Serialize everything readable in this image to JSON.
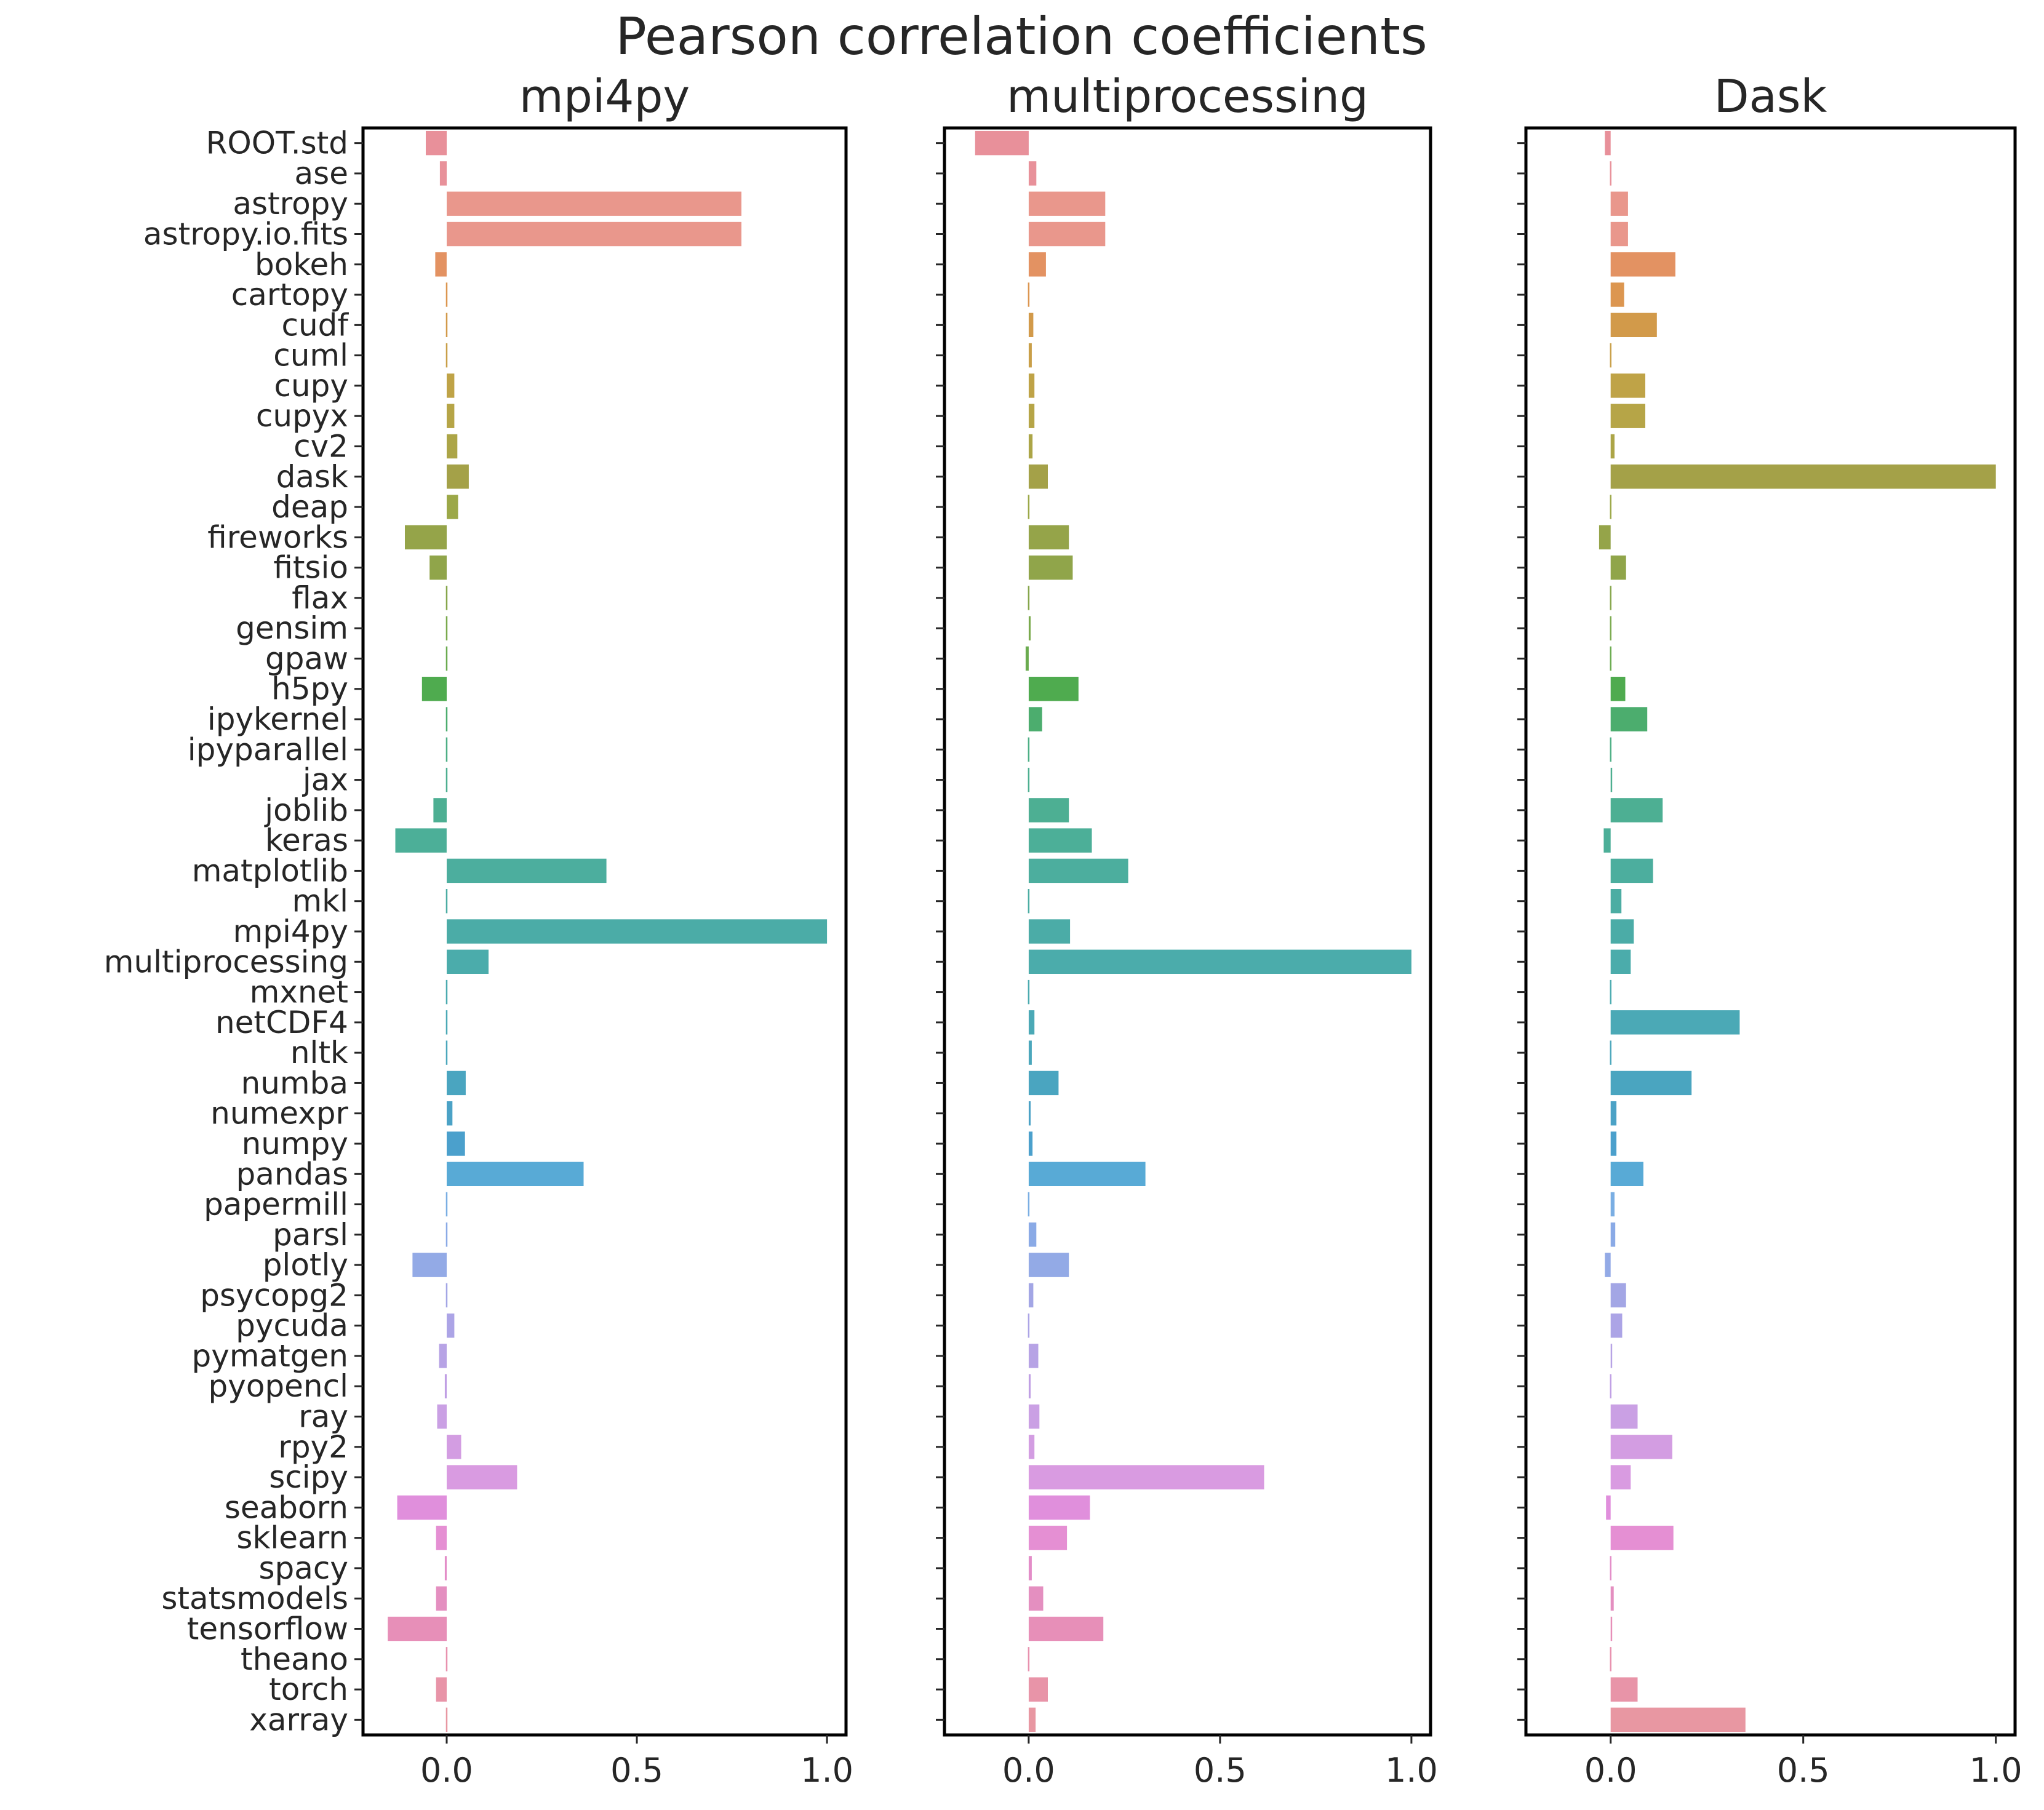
{
  "chart_data": {
    "type": "bar",
    "orientation": "horizontal",
    "title": "Pearson correlation coefficients",
    "categories": [
      "ROOT.std",
      "ase",
      "astropy",
      "astropy.io.fits",
      "bokeh",
      "cartopy",
      "cudf",
      "cuml",
      "cupy",
      "cupyx",
      "cv2",
      "dask",
      "deap",
      "fireworks",
      "fitsio",
      "flax",
      "gensim",
      "gpaw",
      "h5py",
      "ipykernel",
      "ipyparallel",
      "jax",
      "joblib",
      "keras",
      "matplotlib",
      "mkl",
      "mpi4py",
      "multiprocessing",
      "mxnet",
      "netCDF4",
      "nltk",
      "numba",
      "numexpr",
      "numpy",
      "pandas",
      "papermill",
      "parsl",
      "plotly",
      "psycopg2",
      "pycuda",
      "pymatgen",
      "pyopencl",
      "ray",
      "rpy2",
      "scipy",
      "seaborn",
      "sklearn",
      "spacy",
      "statsmodels",
      "tensorflow",
      "theano",
      "torch",
      "xarray"
    ],
    "colors": [
      "#e8909a",
      "#e8919a",
      "#e9978c",
      "#e9978c",
      "#e39262",
      "#dc9650",
      "#d29a4a",
      "#c99f48",
      "#bfa347",
      "#b6a547",
      "#aca547",
      "#a4a148",
      "#9ca848",
      "#95a449",
      "#90a54a",
      "#86a64b",
      "#7aaa4d",
      "#6aab4f",
      "#4fab4f",
      "#4cad6e",
      "#4daf85",
      "#4daf90",
      "#4daf93",
      "#4caf98",
      "#4cae9e",
      "#4cada3",
      "#4baca7",
      "#4bacab",
      "#4babb0",
      "#4ba9b6",
      "#4ba7bc",
      "#4aa5c0",
      "#4ba2c6",
      "#4ba0cc",
      "#58aad6",
      "#7aaee3",
      "#8aaae6",
      "#93aae6",
      "#a3a6e5",
      "#aca4e6",
      "#b7a3e5",
      "#c09fe4",
      "#caa0e4",
      "#d39de2",
      "#d99be1",
      "#e08fdc",
      "#e58fd3",
      "#e38dc8",
      "#e48fc0",
      "#e78fb8",
      "#e891ae",
      "#e894a8",
      "#e897a2"
    ],
    "xlim": [
      -0.22,
      1.05
    ],
    "xticks": [
      "0.0",
      "0.5",
      "1.0"
    ],
    "panels": [
      {
        "title": "mpi4py",
        "values": [
          -0.055,
          -0.018,
          0.775,
          0.775,
          -0.03,
          0,
          -0.003,
          -0.003,
          0.02,
          0.02,
          0.028,
          0.058,
          0.03,
          -0.11,
          -0.045,
          -0.002,
          -0.004,
          -0.002,
          -0.065,
          -0.004,
          -0.002,
          -0.003,
          -0.035,
          -0.135,
          0.42,
          0.004,
          1.0,
          0.11,
          -0.003,
          -0.004,
          -0.002,
          0.05,
          0.015,
          0.048,
          0.36,
          -0.002,
          0.002,
          -0.09,
          -0.002,
          0.02,
          -0.02,
          -0.005,
          -0.025,
          0.038,
          0.185,
          -0.13,
          -0.028,
          -0.005,
          -0.028,
          -0.155,
          0,
          -0.028,
          -0.003
        ]
      },
      {
        "title": "multiprocessing",
        "values": [
          -0.14,
          0.02,
          0.2,
          0.2,
          0.045,
          0,
          0.012,
          0.008,
          0.015,
          0.015,
          0.01,
          0.05,
          0.003,
          0.105,
          0.115,
          0.002,
          0.005,
          -0.008,
          0.13,
          0.035,
          0.003,
          0.004,
          0.105,
          0.165,
          0.26,
          0.003,
          0.108,
          1.0,
          0.004,
          0.015,
          0.008,
          0.078,
          0.005,
          0.01,
          0.305,
          0.003,
          0.02,
          0.105,
          0.012,
          0.003,
          0.025,
          0.005,
          0.028,
          0.015,
          0.615,
          0.16,
          0.1,
          0.008,
          0.038,
          0.195,
          0.002,
          0.05,
          0.018
        ]
      },
      {
        "title": "Dask",
        "values": [
          -0.015,
          0.003,
          0.045,
          0.045,
          0.168,
          0.035,
          0.12,
          0.002,
          0.09,
          0.09,
          0.01,
          1.0,
          0.002,
          -0.03,
          0.04,
          0,
          0.002,
          0.002,
          0.038,
          0.095,
          0.002,
          0.004,
          0.135,
          -0.018,
          0.11,
          0.028,
          0.06,
          0.052,
          0.002,
          0.335,
          0.002,
          0.21,
          0.015,
          0.015,
          0.085,
          0.01,
          0.012,
          -0.015,
          0.04,
          0.03,
          0.004,
          0.002,
          0.07,
          0.16,
          0.052,
          -0.012,
          0.163,
          0.003,
          0.008,
          0.004,
          0.002,
          0.07,
          0.35
        ]
      }
    ],
    "grid": false,
    "legend": "none"
  }
}
